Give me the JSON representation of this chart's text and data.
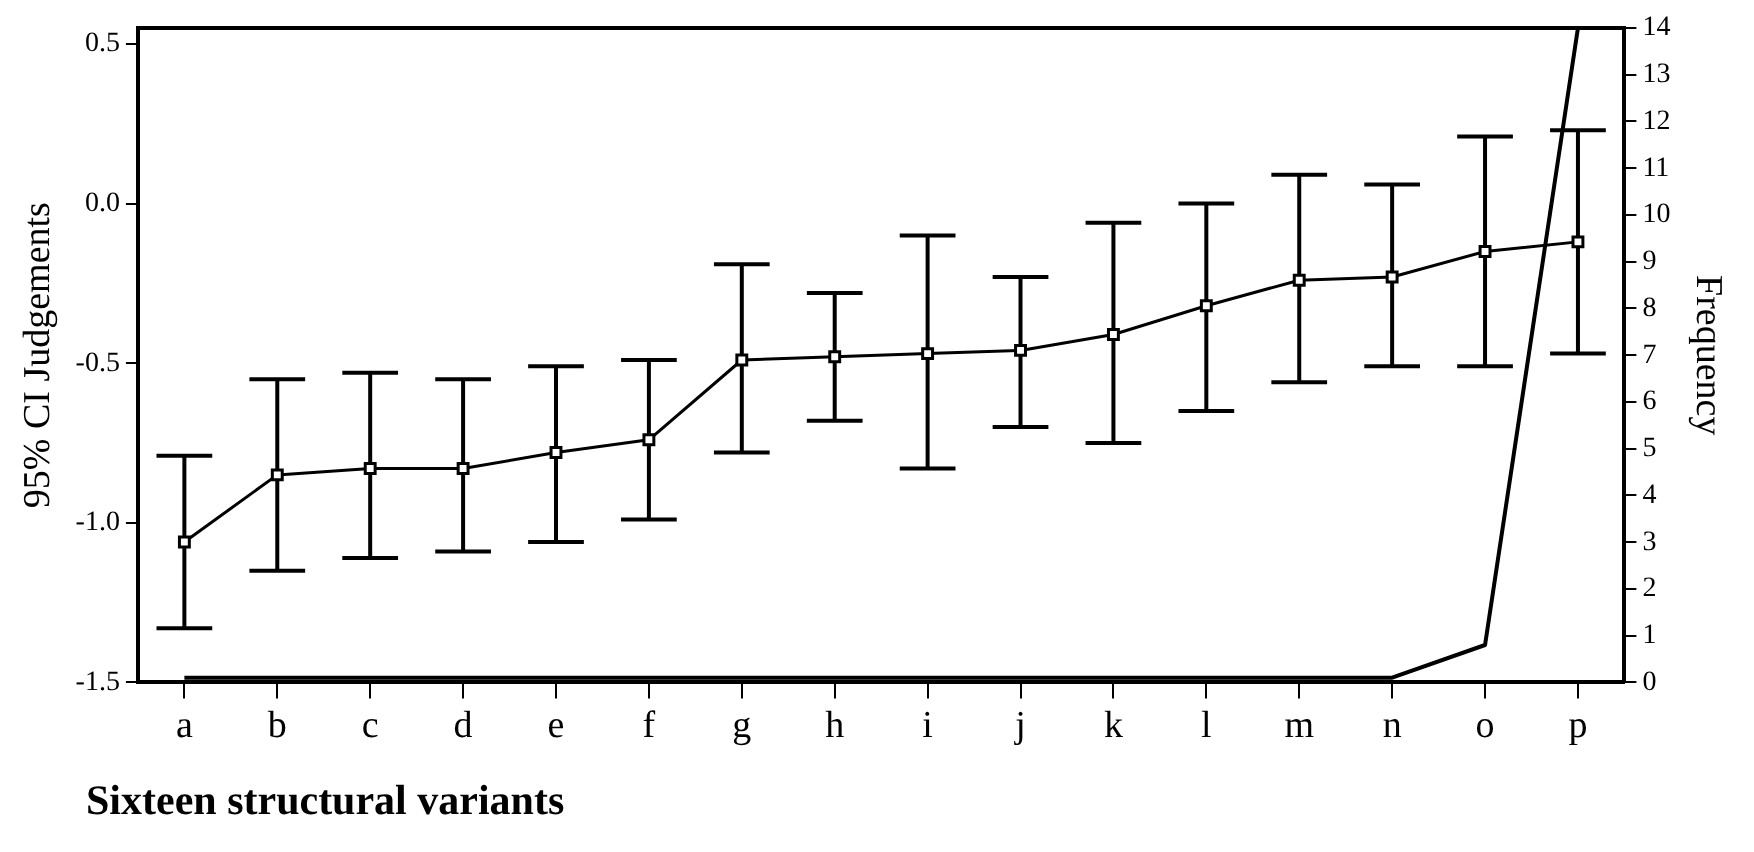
{
  "chart_data": {
    "type": "line",
    "xlabel": "Sixteen structural variants",
    "ylabel": "95% CI Judgements",
    "y2label": "Frequency",
    "categories": [
      "a",
      "b",
      "c",
      "d",
      "e",
      "f",
      "g",
      "h",
      "i",
      "j",
      "k",
      "l",
      "m",
      "n",
      "o",
      "p"
    ],
    "series": [
      {
        "color": "#000000",
        "marker": "square",
        "axis": "y",
        "values": [
          -1.06,
          -0.85,
          -0.83,
          -0.83,
          -0.78,
          -0.74,
          -0.49,
          -0.48,
          -0.47,
          -0.46,
          -0.41,
          -0.32,
          -0.24,
          -0.23,
          -0.15,
          -0.12
        ],
        "errors": [
          [
            -1.33,
            -0.79
          ],
          [
            -1.15,
            -0.55
          ],
          [
            -1.11,
            -0.53
          ],
          [
            -1.09,
            -0.55
          ],
          [
            -1.06,
            -0.51
          ],
          [
            -0.99,
            -0.49
          ],
          [
            -0.78,
            -0.19
          ],
          [
            -0.68,
            -0.28
          ],
          [
            -0.83,
            -0.1
          ],
          [
            -0.7,
            -0.23
          ],
          [
            -0.75,
            -0.06
          ],
          [
            -0.65,
            0.0
          ],
          [
            -0.56,
            0.09
          ],
          [
            -0.51,
            0.06
          ],
          [
            -0.51,
            0.21
          ],
          [
            -0.47,
            0.23
          ]
        ]
      },
      {
        "color": "#000000",
        "marker": "none",
        "axis": "y2",
        "values": [
          0.1,
          0.1,
          0.1,
          0.1,
          0.1,
          0.1,
          0.1,
          0.1,
          0.1,
          0.1,
          0.1,
          0.1,
          0.1,
          0.1,
          0.8,
          14
        ]
      }
    ],
    "ylim": [
      -1.5,
      0.55
    ],
    "yticks": [
      {
        "value": 0.5,
        "label": "0.5"
      },
      {
        "value": 0,
        "label": "0.0"
      },
      {
        "value": -0.5,
        "label": "-0.5"
      },
      {
        "value": -1,
        "label": "-1.0"
      },
      {
        "value": -1.5,
        "label": "-1.5"
      }
    ],
    "y2lim": [
      0,
      14
    ],
    "y2ticks": [
      0,
      1,
      2,
      3,
      4,
      5,
      6,
      7,
      8,
      9,
      10,
      11,
      12,
      13,
      14
    ],
    "grid": false,
    "legend": false
  }
}
